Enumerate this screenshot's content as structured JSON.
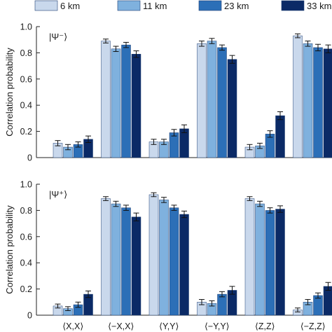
{
  "legend": {
    "entries": [
      {
        "label": "6 km",
        "color": "#c9d8ec"
      },
      {
        "label": "11 km",
        "color": "#7fb1de"
      },
      {
        "label": "23 km",
        "color": "#2c6fb7"
      },
      {
        "label": "33 km",
        "color": "#0b2a66"
      }
    ],
    "placement": "top"
  },
  "chart_data": [
    {
      "type": "bar",
      "state_label": "|Ψ⁻⟩",
      "ylabel": "Correlation probability",
      "ylim": [
        0,
        1.0
      ],
      "yticks": [
        "0",
        "0.2",
        "0.4",
        "0.6",
        "0.8",
        "1.0"
      ],
      "categories": [
        "⟨X,X⟩",
        "⟨−X,X⟩",
        "⟨Y,Y⟩",
        "⟨−Y,Y⟩",
        "⟨Z,Z⟩",
        "⟨−Z,Z⟩"
      ],
      "grid": false,
      "series": [
        {
          "name": "6 km",
          "values": [
            0.11,
            0.89,
            0.12,
            0.87,
            0.08,
            0.93
          ],
          "errors": [
            0.02,
            0.015,
            0.02,
            0.02,
            0.02,
            0.015
          ]
        },
        {
          "name": "11 km",
          "values": [
            0.08,
            0.83,
            0.12,
            0.89,
            0.09,
            0.87
          ],
          "errors": [
            0.02,
            0.02,
            0.02,
            0.02,
            0.02,
            0.02
          ]
        },
        {
          "name": "23 km",
          "values": [
            0.1,
            0.86,
            0.19,
            0.84,
            0.18,
            0.84
          ],
          "errors": [
            0.02,
            0.02,
            0.025,
            0.02,
            0.025,
            0.025
          ]
        },
        {
          "name": "33 km",
          "values": [
            0.14,
            0.79,
            0.22,
            0.75,
            0.32,
            0.83
          ],
          "errors": [
            0.025,
            0.025,
            0.03,
            0.03,
            0.03,
            0.03
          ]
        }
      ]
    },
    {
      "type": "bar",
      "state_label": "|Ψ⁺⟩",
      "ylabel": "Correlation probability",
      "ylim": [
        0,
        1.0
      ],
      "yticks": [
        "0",
        "0.2",
        "0.4",
        "0.6",
        "0.8",
        "1.0"
      ],
      "categories": [
        "⟨X,X⟩",
        "⟨−X,X⟩",
        "⟨Y,Y⟩",
        "⟨−Y,Y⟩",
        "⟨Z,Z⟩",
        "⟨−Z,Z⟩"
      ],
      "grid": false,
      "series": [
        {
          "name": "6 km",
          "values": [
            0.07,
            0.89,
            0.92,
            0.1,
            0.89,
            0.04
          ],
          "errors": [
            0.015,
            0.015,
            0.015,
            0.02,
            0.015,
            0.015
          ]
        },
        {
          "name": "11 km",
          "values": [
            0.05,
            0.85,
            0.88,
            0.09,
            0.85,
            0.1
          ],
          "errors": [
            0.015,
            0.02,
            0.02,
            0.02,
            0.02,
            0.02
          ]
        },
        {
          "name": "23 km",
          "values": [
            0.08,
            0.82,
            0.82,
            0.16,
            0.8,
            0.15
          ],
          "errors": [
            0.02,
            0.02,
            0.02,
            0.02,
            0.02,
            0.02
          ]
        },
        {
          "name": "33 km",
          "values": [
            0.16,
            0.75,
            0.77,
            0.19,
            0.81,
            0.22
          ],
          "errors": [
            0.025,
            0.03,
            0.025,
            0.03,
            0.025,
            0.03
          ]
        }
      ]
    }
  ]
}
